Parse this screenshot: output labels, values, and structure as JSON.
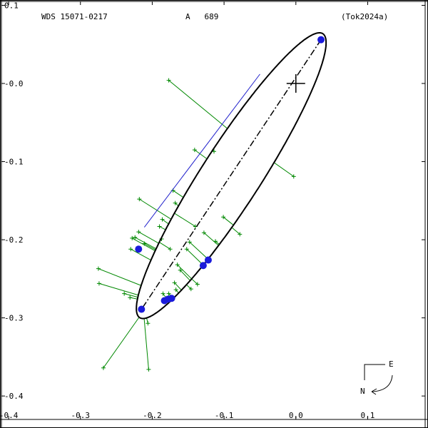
{
  "header": {
    "left": "WDS 15071-0217",
    "middle": "A   689",
    "right": "(Tok2024a)"
  },
  "chart_data": {
    "type": "scatter",
    "title": "",
    "xlabel": "",
    "ylabel": "",
    "xlim": [
      -0.41,
      0.18
    ],
    "ylim": [
      -0.43,
      0.105
    ],
    "x_ticks": [
      -0.4,
      -0.3,
      -0.2,
      -0.1,
      0.0,
      0.1
    ],
    "x_tick_labels": [
      "-0.4",
      "-0.3",
      "-0.2",
      "-0.1",
      "0.0",
      "0.1"
    ],
    "y_ticks": [
      0.1,
      0.0,
      -0.1,
      -0.2,
      -0.3,
      -0.4
    ],
    "y_tick_labels": [
      "0.1",
      "-0.0",
      "-0.1",
      "-0.2",
      "-0.3",
      "-0.4"
    ],
    "primary": [
      0.0,
      0.0
    ],
    "orbit_ellipse": {
      "center": [
        -0.09,
        -0.118
      ],
      "semi_major": 0.222,
      "semi_minor": 0.04,
      "angle_deg": 54.8
    },
    "line_of_nodes": {
      "from": [
        0.035,
        0.056
      ],
      "to": [
        -0.215,
        -0.289
      ]
    },
    "blue_segment": {
      "from": [
        -0.05,
        0.012
      ],
      "to": [
        -0.211,
        -0.184
      ]
    },
    "observations": [
      [
        -0.177,
        0.004
      ],
      [
        -0.114,
        -0.087
      ],
      [
        -0.141,
        -0.085
      ],
      [
        -0.171,
        -0.137
      ],
      [
        -0.168,
        -0.153
      ],
      [
        -0.218,
        -0.148
      ],
      [
        -0.186,
        -0.174
      ],
      [
        -0.19,
        -0.183
      ],
      [
        -0.219,
        -0.19
      ],
      [
        -0.224,
        -0.197
      ],
      [
        -0.211,
        -0.205
      ],
      [
        -0.187,
        -0.199
      ],
      [
        -0.14,
        -0.183
      ],
      [
        -0.128,
        -0.191
      ],
      [
        -0.175,
        -0.212
      ],
      [
        -0.152,
        -0.212
      ],
      [
        -0.148,
        -0.203
      ],
      [
        -0.101,
        -0.171
      ],
      [
        -0.112,
        -0.202
      ],
      [
        -0.078,
        -0.193
      ],
      [
        -0.165,
        -0.232
      ],
      [
        -0.161,
        -0.239
      ],
      [
        -0.167,
        -0.264
      ],
      [
        -0.146,
        -0.263
      ],
      [
        -0.137,
        -0.257
      ],
      [
        -0.177,
        -0.269
      ],
      [
        -0.185,
        -0.269
      ],
      [
        -0.169,
        -0.255
      ],
      [
        -0.275,
        -0.237
      ],
      [
        -0.274,
        -0.256
      ],
      [
        -0.239,
        -0.269
      ],
      [
        -0.231,
        -0.274
      ],
      [
        -0.268,
        -0.364
      ],
      [
        -0.206,
        -0.307
      ],
      [
        -0.205,
        -0.366
      ],
      [
        -0.003,
        -0.119
      ],
      [
        -0.228,
        -0.198
      ],
      [
        -0.23,
        -0.212
      ]
    ],
    "predicted_positions": [
      [
        0.035,
        0.056
      ],
      [
        -0.219,
        -0.212
      ],
      [
        -0.215,
        -0.289
      ],
      [
        -0.183,
        -0.278
      ],
      [
        -0.178,
        -0.276
      ],
      [
        -0.173,
        -0.275
      ],
      [
        -0.129,
        -0.233
      ],
      [
        -0.122,
        -0.226
      ]
    ],
    "colors": {
      "orbit": "#000000",
      "observation": "#008800",
      "predicted": "#1a1adb",
      "segment": "#2222cc"
    }
  },
  "compass": {
    "east": "E",
    "north": "N"
  }
}
